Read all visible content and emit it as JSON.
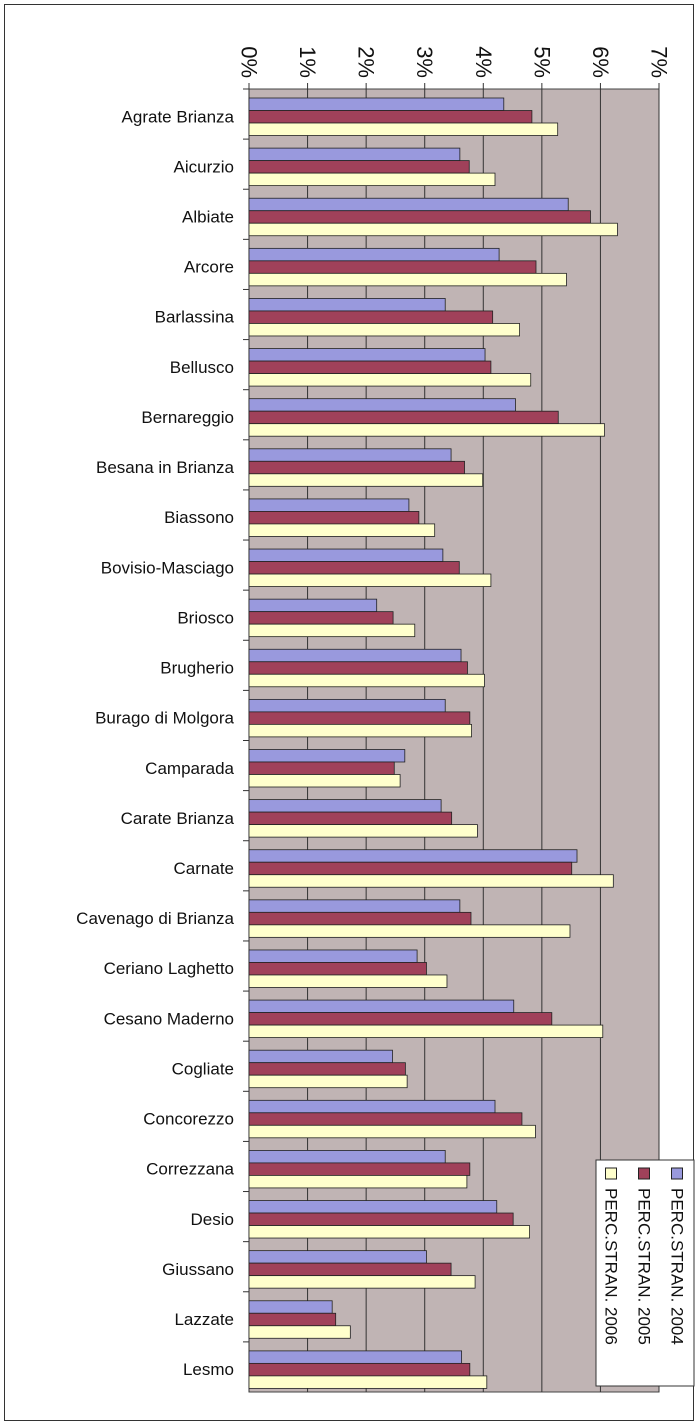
{
  "chart_data": {
    "type": "bar",
    "orientation": "horizontal",
    "categories": [
      "Agrate Brianza",
      "Aicurzio",
      "Albiate",
      "Arcore",
      "Barlassina",
      "Bellusco",
      "Bernareggio",
      "Besana in Brianza",
      "Biassono",
      "Bovisio-Masciago",
      "Briosco",
      "Brugherio",
      "Burago di Molgora",
      "Camparada",
      "Carate Brianza",
      "Carnate",
      "Cavenago di Brianza",
      "Ceriano Laghetto",
      "Cesano Maderno",
      "Cogliate",
      "Concorezzo",
      "Correzzana",
      "Desio",
      "Giussano",
      "Lazzate",
      "Lesmo"
    ],
    "series": [
      {
        "name": "PERC.STRAN. 2004",
        "color": "#9999dd",
        "values": [
          4.35,
          3.6,
          5.45,
          4.27,
          3.35,
          4.03,
          4.55,
          3.45,
          2.73,
          3.31,
          2.18,
          3.62,
          3.35,
          2.66,
          3.28,
          5.6,
          3.6,
          2.87,
          4.52,
          2.45,
          4.2,
          3.35,
          4.23,
          3.03,
          1.42,
          3.63
        ]
      },
      {
        "name": "PERC.STRAN. 2005",
        "color": "#a0415a",
        "values": [
          4.83,
          3.76,
          5.83,
          4.9,
          4.16,
          4.13,
          5.28,
          3.68,
          2.9,
          3.59,
          2.46,
          3.73,
          3.77,
          2.48,
          3.46,
          5.51,
          3.79,
          3.03,
          5.17,
          2.67,
          4.66,
          3.77,
          4.51,
          3.45,
          1.48,
          3.77
        ]
      },
      {
        "name": "PERC.STRAN. 2006",
        "color": "#ffffcc",
        "values": [
          5.27,
          4.2,
          6.29,
          5.42,
          4.62,
          4.81,
          6.07,
          3.99,
          3.17,
          4.13,
          2.83,
          4.02,
          3.8,
          2.58,
          3.9,
          6.22,
          5.48,
          3.38,
          6.04,
          2.7,
          4.89,
          3.72,
          4.79,
          3.86,
          1.73,
          4.06
        ]
      }
    ],
    "tick_labels": [
      "0%",
      "1%",
      "2%",
      "3%",
      "4%",
      "5%",
      "6%",
      "7%"
    ],
    "xlim": [
      0,
      7
    ],
    "grid": true,
    "legend": "bottom-right",
    "plot_background": "#c0b4b4"
  }
}
